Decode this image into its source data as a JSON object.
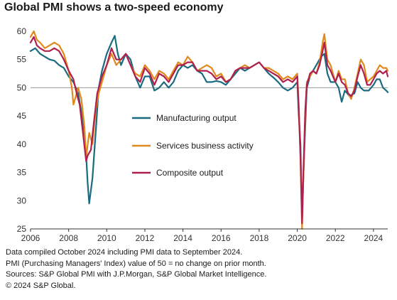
{
  "title": "Global PMI shows a two-speed economy",
  "footnotes": [
    "Data compiled October 2024 including PMI data to September 2024.",
    "PMI (Purchasing Managers' Index) value of 50 = no change on prior month.",
    "Sources: S&P Global PMI with J.P.Morgan, S&P Global Market Intelligence.",
    "© 2024 S&P Global."
  ],
  "chart_data": {
    "type": "line",
    "title": "Global PMI shows a two-speed economy",
    "xlabel": "",
    "ylabel": "",
    "xlim": [
      2006,
      2024.75
    ],
    "ylim": [
      25,
      61
    ],
    "yticks": [
      25,
      30,
      35,
      40,
      45,
      50,
      55,
      60
    ],
    "xticks": [
      2006,
      2008,
      2010,
      2012,
      2014,
      2016,
      2018,
      2020,
      2022,
      2024
    ],
    "reference_line": 50,
    "grid": false,
    "legend_position": "center",
    "series": [
      {
        "name": "Manufacturing output",
        "color": "#1a6b80",
        "points": [
          [
            2006.0,
            56.5
          ],
          [
            2006.25,
            57
          ],
          [
            2006.5,
            56
          ],
          [
            2006.75,
            55.5
          ],
          [
            2007.0,
            55
          ],
          [
            2007.25,
            54.8
          ],
          [
            2007.5,
            54
          ],
          [
            2007.75,
            53.5
          ],
          [
            2008.0,
            52
          ],
          [
            2008.25,
            51
          ],
          [
            2008.5,
            49
          ],
          [
            2008.75,
            44
          ],
          [
            2008.92,
            38
          ],
          [
            2009.0,
            33
          ],
          [
            2009.08,
            29.5
          ],
          [
            2009.25,
            34
          ],
          [
            2009.42,
            42
          ],
          [
            2009.58,
            50
          ],
          [
            2009.75,
            53
          ],
          [
            2010.0,
            56
          ],
          [
            2010.25,
            58
          ],
          [
            2010.42,
            59.2
          ],
          [
            2010.58,
            56
          ],
          [
            2010.75,
            54
          ],
          [
            2011.0,
            56
          ],
          [
            2011.25,
            55
          ],
          [
            2011.5,
            52
          ],
          [
            2011.75,
            50
          ],
          [
            2012.0,
            52
          ],
          [
            2012.25,
            52
          ],
          [
            2012.5,
            49.5
          ],
          [
            2012.75,
            50
          ],
          [
            2013.0,
            51
          ],
          [
            2013.25,
            50
          ],
          [
            2013.5,
            51
          ],
          [
            2013.75,
            53
          ],
          [
            2014.0,
            54
          ],
          [
            2014.25,
            53.5
          ],
          [
            2014.5,
            54
          ],
          [
            2014.75,
            53
          ],
          [
            2015.0,
            52.5
          ],
          [
            2015.25,
            51
          ],
          [
            2015.5,
            51
          ],
          [
            2015.75,
            51.2
          ],
          [
            2016.0,
            51
          ],
          [
            2016.25,
            50.5
          ],
          [
            2016.5,
            51.5
          ],
          [
            2016.75,
            52.5
          ],
          [
            2017.0,
            53.5
          ],
          [
            2017.25,
            53
          ],
          [
            2017.5,
            53.5
          ],
          [
            2017.75,
            54
          ],
          [
            2018.0,
            54.5
          ],
          [
            2018.25,
            53.5
          ],
          [
            2018.5,
            52.5
          ],
          [
            2018.75,
            51.8
          ],
          [
            2019.0,
            51
          ],
          [
            2019.25,
            50
          ],
          [
            2019.5,
            49.5
          ],
          [
            2019.75,
            50
          ],
          [
            2020.0,
            51
          ],
          [
            2020.08,
            45
          ],
          [
            2020.17,
            40
          ],
          [
            2020.25,
            26.5
          ],
          [
            2020.33,
            35
          ],
          [
            2020.42,
            43
          ],
          [
            2020.5,
            50
          ],
          [
            2020.67,
            52
          ],
          [
            2020.83,
            53
          ],
          [
            2021.0,
            54
          ],
          [
            2021.25,
            55.5
          ],
          [
            2021.42,
            56
          ],
          [
            2021.58,
            52.5
          ],
          [
            2021.75,
            51
          ],
          [
            2022.0,
            51
          ],
          [
            2022.17,
            50
          ],
          [
            2022.33,
            47.5
          ],
          [
            2022.5,
            49.5
          ],
          [
            2022.75,
            48.5
          ],
          [
            2023.0,
            49
          ],
          [
            2023.17,
            51
          ],
          [
            2023.33,
            50
          ],
          [
            2023.5,
            49.5
          ],
          [
            2023.75,
            49.5
          ],
          [
            2024.0,
            50.5
          ],
          [
            2024.17,
            51.5
          ],
          [
            2024.33,
            51.5
          ],
          [
            2024.5,
            50
          ],
          [
            2024.67,
            49.5
          ],
          [
            2024.75,
            49.2
          ]
        ]
      },
      {
        "name": "Services business activity",
        "color": "#e08a1e",
        "points": [
          [
            2006.0,
            59
          ],
          [
            2006.17,
            60
          ],
          [
            2006.33,
            58.5
          ],
          [
            2006.5,
            58
          ],
          [
            2006.75,
            57
          ],
          [
            2007.0,
            57.5
          ],
          [
            2007.25,
            58
          ],
          [
            2007.5,
            57.5
          ],
          [
            2007.75,
            56
          ],
          [
            2008.0,
            53
          ],
          [
            2008.17,
            50
          ],
          [
            2008.25,
            47
          ],
          [
            2008.5,
            50
          ],
          [
            2008.67,
            48
          ],
          [
            2008.83,
            43
          ],
          [
            2008.92,
            37.5
          ],
          [
            2009.0,
            40
          ],
          [
            2009.08,
            42
          ],
          [
            2009.25,
            40
          ],
          [
            2009.42,
            46
          ],
          [
            2009.58,
            49
          ],
          [
            2009.75,
            51
          ],
          [
            2010.0,
            54
          ],
          [
            2010.25,
            56
          ],
          [
            2010.5,
            54
          ],
          [
            2010.75,
            55
          ],
          [
            2011.0,
            56
          ],
          [
            2011.25,
            54
          ],
          [
            2011.5,
            52.5
          ],
          [
            2011.75,
            52
          ],
          [
            2012.0,
            54
          ],
          [
            2012.25,
            53
          ],
          [
            2012.5,
            51.5
          ],
          [
            2012.75,
            53
          ],
          [
            2013.0,
            52.5
          ],
          [
            2013.25,
            51.5
          ],
          [
            2013.5,
            53
          ],
          [
            2013.75,
            54.5
          ],
          [
            2014.0,
            54
          ],
          [
            2014.25,
            55.5
          ],
          [
            2014.5,
            54.5
          ],
          [
            2014.75,
            53
          ],
          [
            2015.0,
            53.5
          ],
          [
            2015.25,
            54
          ],
          [
            2015.5,
            53.5
          ],
          [
            2015.75,
            52
          ],
          [
            2016.0,
            52.5
          ],
          [
            2016.25,
            51
          ],
          [
            2016.5,
            51.5
          ],
          [
            2016.75,
            53
          ],
          [
            2017.0,
            53.5
          ],
          [
            2017.25,
            54
          ],
          [
            2017.5,
            53.5
          ],
          [
            2017.75,
            54
          ],
          [
            2018.0,
            54.5
          ],
          [
            2018.25,
            53.5
          ],
          [
            2018.5,
            53.5
          ],
          [
            2018.75,
            53
          ],
          [
            2019.0,
            52.5
          ],
          [
            2019.25,
            51.5
          ],
          [
            2019.5,
            52
          ],
          [
            2019.75,
            51.5
          ],
          [
            2020.0,
            52.5
          ],
          [
            2020.08,
            47
          ],
          [
            2020.17,
            37
          ],
          [
            2020.25,
            25
          ],
          [
            2020.33,
            35
          ],
          [
            2020.42,
            45
          ],
          [
            2020.5,
            51
          ],
          [
            2020.67,
            52
          ],
          [
            2020.83,
            53
          ],
          [
            2021.0,
            52.5
          ],
          [
            2021.17,
            54.5
          ],
          [
            2021.33,
            58
          ],
          [
            2021.42,
            59.5
          ],
          [
            2021.58,
            55
          ],
          [
            2021.75,
            54
          ],
          [
            2022.0,
            51
          ],
          [
            2022.17,
            53
          ],
          [
            2022.33,
            51.5
          ],
          [
            2022.5,
            51.5
          ],
          [
            2022.67,
            49
          ],
          [
            2022.83,
            48
          ],
          [
            2023.0,
            50
          ],
          [
            2023.17,
            52.5
          ],
          [
            2023.33,
            55
          ],
          [
            2023.5,
            54
          ],
          [
            2023.67,
            51
          ],
          [
            2023.83,
            51.5
          ],
          [
            2024.0,
            52
          ],
          [
            2024.17,
            53
          ],
          [
            2024.33,
            54
          ],
          [
            2024.5,
            53.5
          ],
          [
            2024.67,
            53.5
          ],
          [
            2024.75,
            53
          ]
        ]
      },
      {
        "name": "Composite output",
        "color": "#b0204e",
        "points": [
          [
            2006.0,
            58
          ],
          [
            2006.17,
            59
          ],
          [
            2006.33,
            57.5
          ],
          [
            2006.5,
            57
          ],
          [
            2006.75,
            56.5
          ],
          [
            2007.0,
            56.5
          ],
          [
            2007.25,
            57
          ],
          [
            2007.5,
            56.5
          ],
          [
            2007.75,
            55
          ],
          [
            2008.0,
            53
          ],
          [
            2008.25,
            51.5
          ],
          [
            2008.42,
            49
          ],
          [
            2008.58,
            47
          ],
          [
            2008.75,
            42
          ],
          [
            2008.92,
            37
          ],
          [
            2009.0,
            38
          ],
          [
            2009.17,
            39
          ],
          [
            2009.33,
            44
          ],
          [
            2009.5,
            49
          ],
          [
            2009.75,
            52
          ],
          [
            2010.0,
            54
          ],
          [
            2010.25,
            57
          ],
          [
            2010.5,
            55
          ],
          [
            2010.75,
            55
          ],
          [
            2011.0,
            56
          ],
          [
            2011.25,
            54
          ],
          [
            2011.5,
            52
          ],
          [
            2011.75,
            51
          ],
          [
            2012.0,
            53.5
          ],
          [
            2012.25,
            52.5
          ],
          [
            2012.5,
            50.5
          ],
          [
            2012.75,
            52.5
          ],
          [
            2013.0,
            52
          ],
          [
            2013.25,
            51
          ],
          [
            2013.5,
            52.5
          ],
          [
            2013.75,
            54
          ],
          [
            2014.0,
            54
          ],
          [
            2014.25,
            54.5
          ],
          [
            2014.5,
            54.5
          ],
          [
            2014.75,
            53
          ],
          [
            2015.0,
            53
          ],
          [
            2015.25,
            53
          ],
          [
            2015.5,
            52.5
          ],
          [
            2015.75,
            51.5
          ],
          [
            2016.0,
            52
          ],
          [
            2016.25,
            51
          ],
          [
            2016.5,
            51.5
          ],
          [
            2016.75,
            53
          ],
          [
            2017.0,
            53.5
          ],
          [
            2017.25,
            53.5
          ],
          [
            2017.5,
            53.5
          ],
          [
            2017.75,
            54
          ],
          [
            2018.0,
            54.5
          ],
          [
            2018.25,
            53.5
          ],
          [
            2018.5,
            53
          ],
          [
            2018.75,
            52.5
          ],
          [
            2019.0,
            52
          ],
          [
            2019.25,
            51
          ],
          [
            2019.5,
            51.5
          ],
          [
            2019.75,
            51
          ],
          [
            2020.0,
            52
          ],
          [
            2020.08,
            46
          ],
          [
            2020.17,
            38
          ],
          [
            2020.25,
            26
          ],
          [
            2020.33,
            36
          ],
          [
            2020.42,
            46
          ],
          [
            2020.5,
            50.5
          ],
          [
            2020.67,
            52.5
          ],
          [
            2020.83,
            53
          ],
          [
            2021.0,
            52.5
          ],
          [
            2021.17,
            54
          ],
          [
            2021.33,
            56.5
          ],
          [
            2021.42,
            58
          ],
          [
            2021.58,
            54
          ],
          [
            2021.75,
            53
          ],
          [
            2022.0,
            51
          ],
          [
            2022.17,
            52.5
          ],
          [
            2022.33,
            51
          ],
          [
            2022.5,
            50.5
          ],
          [
            2022.67,
            49
          ],
          [
            2022.83,
            48.5
          ],
          [
            2023.0,
            49.5
          ],
          [
            2023.17,
            52
          ],
          [
            2023.33,
            54
          ],
          [
            2023.5,
            52.5
          ],
          [
            2023.67,
            50.5
          ],
          [
            2023.83,
            50.5
          ],
          [
            2024.0,
            51.5
          ],
          [
            2024.17,
            52.5
          ],
          [
            2024.33,
            53
          ],
          [
            2024.5,
            52.5
          ],
          [
            2024.67,
            53
          ],
          [
            2024.75,
            52
          ]
        ]
      }
    ]
  }
}
